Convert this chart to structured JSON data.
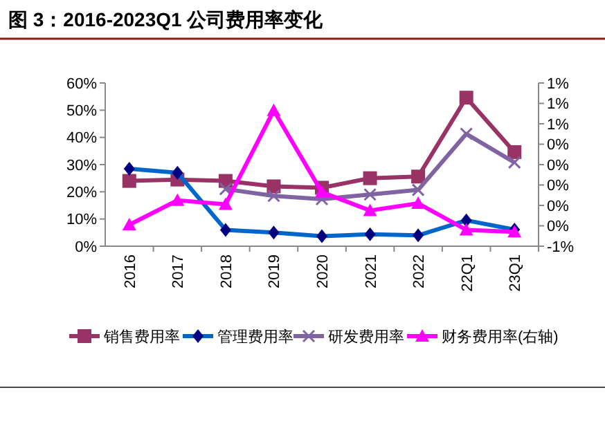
{
  "chart_data": {
    "type": "line",
    "title": "图 3：2016-2023Q1 公司费用率变化",
    "categories": [
      "2016",
      "2017",
      "2018",
      "2019",
      "2020",
      "2021",
      "2022",
      "22Q1",
      "23Q1"
    ],
    "series": [
      {
        "name": "销售费用率",
        "color": "#993366",
        "marker": "square",
        "values": [
          24,
          24.5,
          24,
          22,
          21.5,
          25,
          25.6,
          54.6,
          34.6
        ]
      },
      {
        "name": "管理费用率",
        "color": "#0066cc",
        "marker": "diamond",
        "values": [
          28.5,
          27,
          6,
          5,
          3.7,
          4.4,
          4,
          9.5,
          6.1
        ]
      },
      {
        "name": "研发费用率",
        "color": "#8064a2",
        "marker": "cross",
        "values": [
          null,
          null,
          21,
          18.5,
          17.3,
          19,
          20.7,
          41.3,
          30.8
        ]
      },
      {
        "name": "财务费用率(右轴)",
        "color": "#ff00ff",
        "marker": "triangle",
        "axis": "y2",
        "values": [
          -0.39,
          -0.15,
          -0.19,
          0.73,
          -0.07,
          -0.25,
          -0.18,
          -0.44,
          -0.46
        ]
      }
    ],
    "ylim": [
      0,
      60
    ],
    "yticks": [
      {
        "value": 0,
        "label": "0%"
      },
      {
        "value": 10,
        "label": "10%"
      },
      {
        "value": 20,
        "label": "20%"
      },
      {
        "value": 30,
        "label": "30%"
      },
      {
        "value": 40,
        "label": "40%"
      },
      {
        "value": 50,
        "label": "50%"
      },
      {
        "value": 60,
        "label": "60%"
      }
    ],
    "y2lim": [
      -0.6,
      1.0
    ],
    "y2ticks": [
      {
        "value": -0.6,
        "label": "-1%"
      },
      {
        "value": -0.4,
        "label": "0%"
      },
      {
        "value": -0.2,
        "label": "0%"
      },
      {
        "value": 0,
        "label": "0%"
      },
      {
        "value": 0.2,
        "label": "0%"
      },
      {
        "value": 0.4,
        "label": "0%"
      },
      {
        "value": 0.6,
        "label": "1%"
      },
      {
        "value": 0.8,
        "label": "1%"
      },
      {
        "value": 1.0,
        "label": "1%"
      }
    ],
    "grid": false,
    "legend": "bottom",
    "line_style": "solid"
  }
}
